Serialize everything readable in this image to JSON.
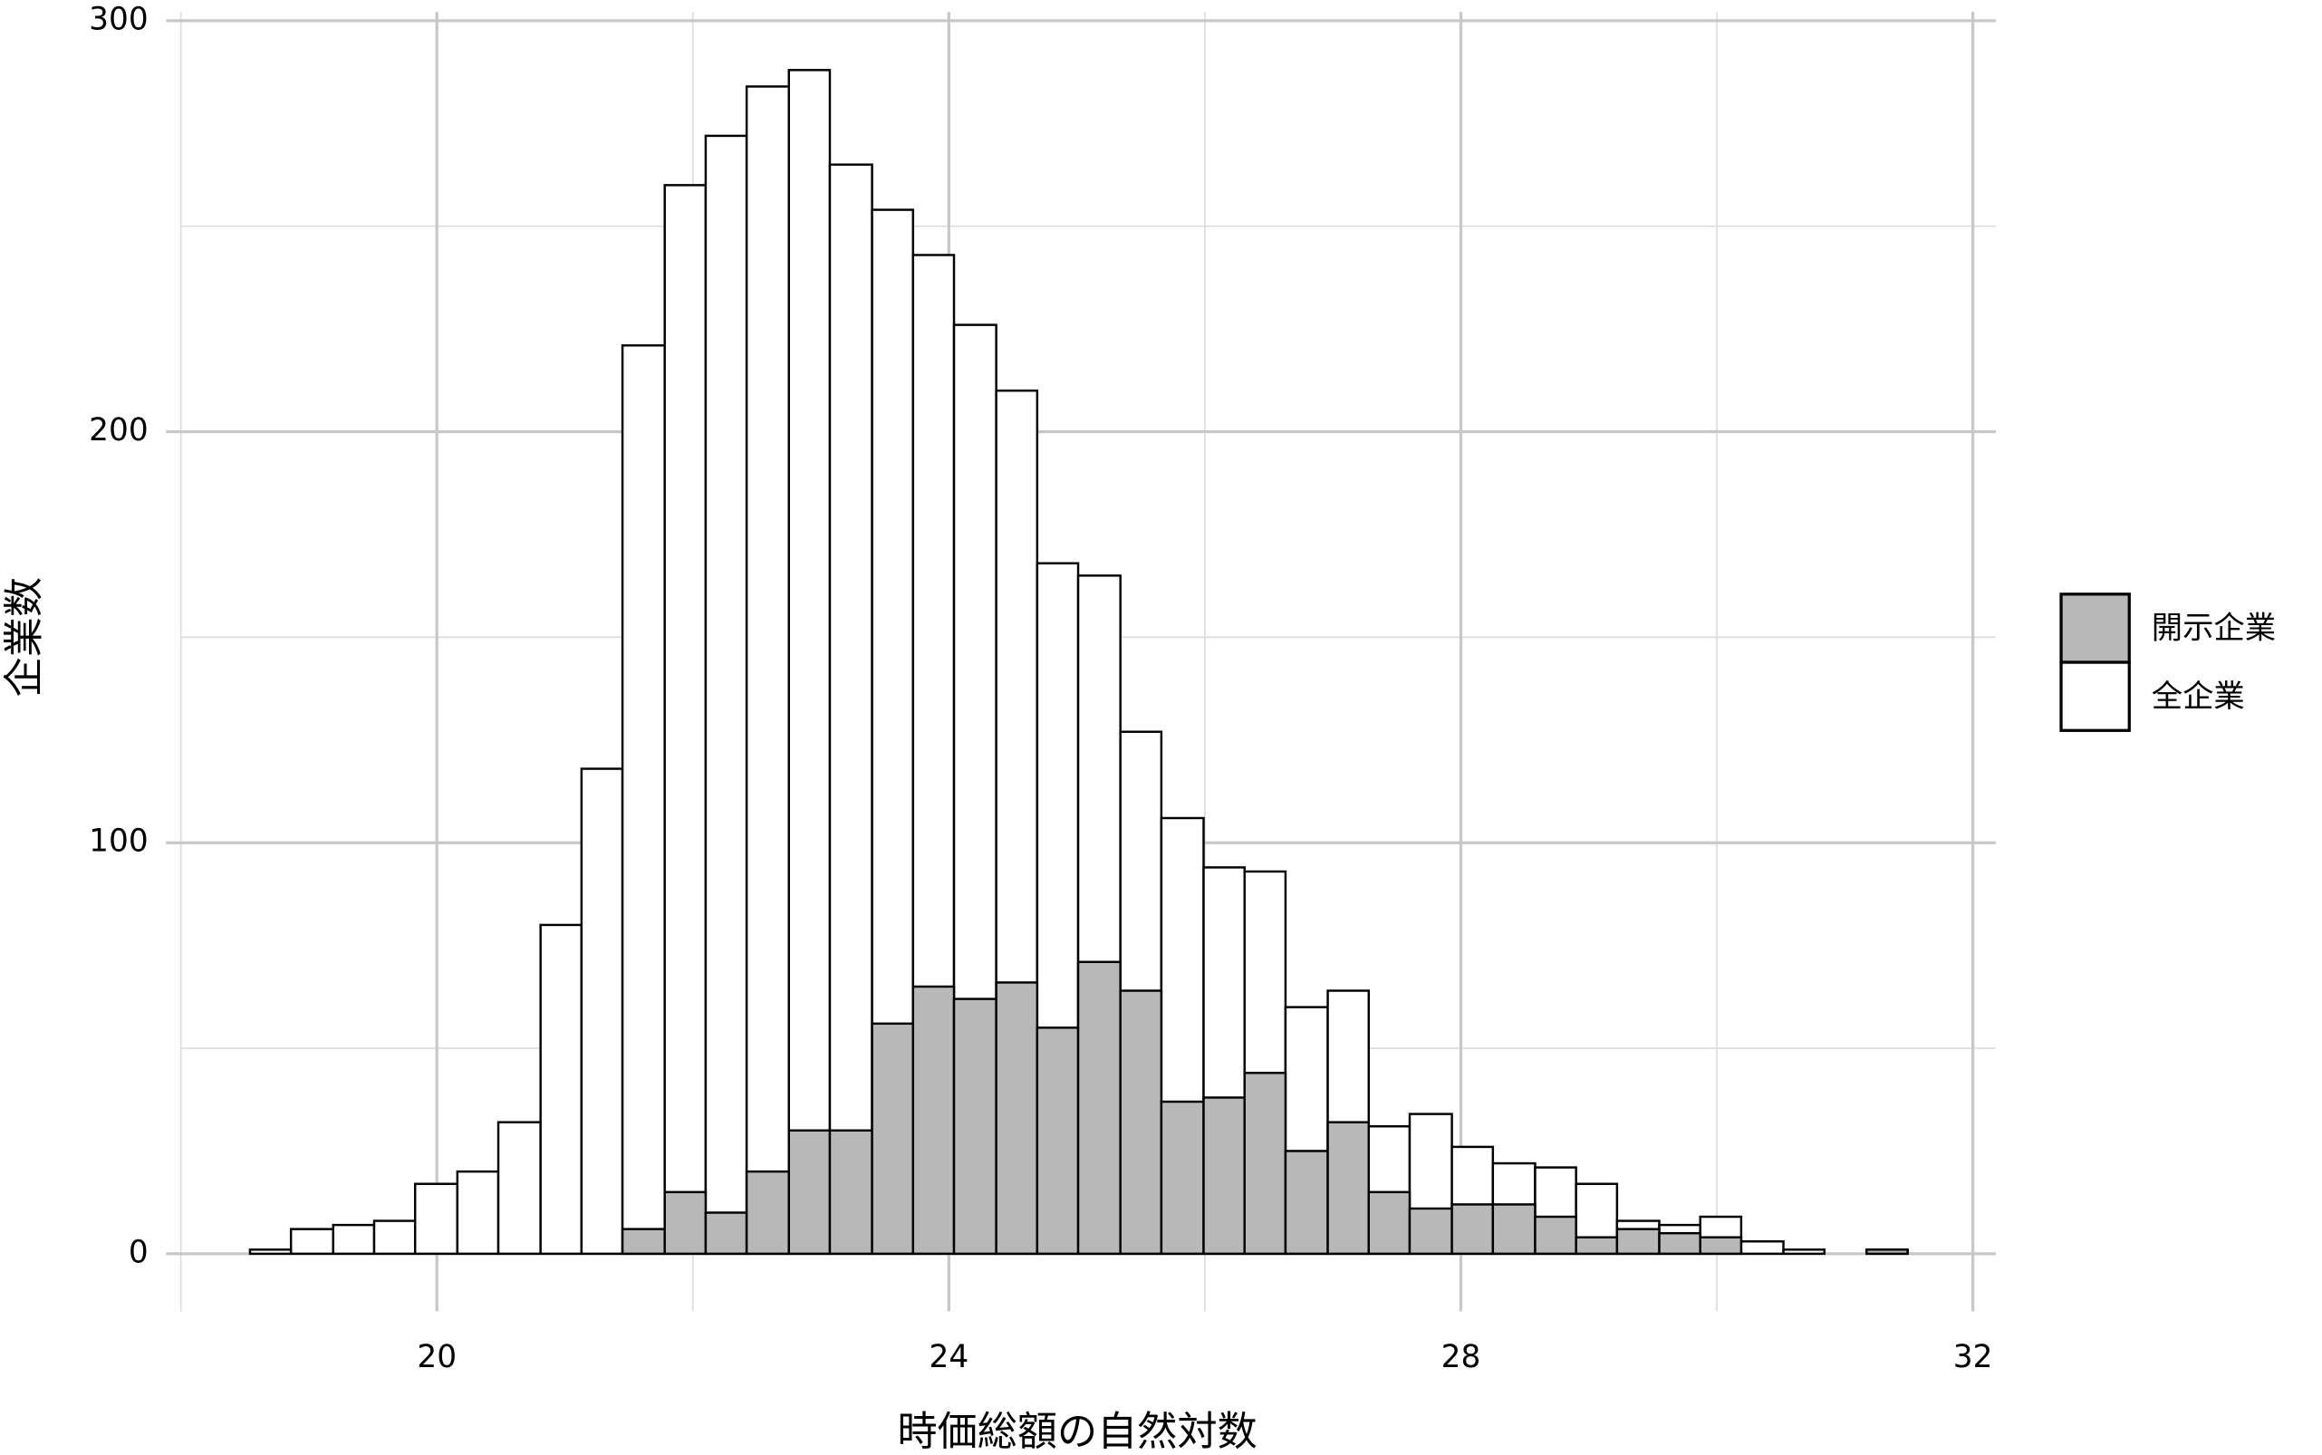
{
  "chart_data": {
    "type": "histogram",
    "x_label": "時価総額の自然対数",
    "y_label": "企業数",
    "bins": [
      18.54,
      18.86,
      19.19,
      19.51,
      19.83,
      20.16,
      20.48,
      20.81,
      21.13,
      21.45,
      21.78,
      22.1,
      22.42,
      22.75,
      23.07,
      23.4,
      23.72,
      24.04,
      24.37,
      24.69,
      25.01,
      25.34,
      25.66,
      25.99,
      26.31,
      26.63,
      26.96,
      27.28,
      27.6,
      27.93,
      28.25,
      28.58,
      28.9,
      29.22,
      29.55,
      29.87,
      30.19,
      30.52,
      30.84,
      31.17,
      31.49
    ],
    "series": [
      {
        "name": "開示企業",
        "color": "#b8b8b8",
        "values": [
          0,
          0,
          0,
          0,
          0,
          0,
          0,
          0,
          0,
          6,
          15,
          10,
          20,
          30,
          30,
          56,
          65,
          62,
          66,
          55,
          71,
          64,
          37,
          38,
          44,
          25,
          32,
          15,
          11,
          12,
          12,
          9,
          4,
          6,
          5,
          4,
          0,
          0,
          0,
          1
        ]
      },
      {
        "name": "全企業",
        "color": "#ffffff",
        "values": [
          1,
          6,
          7,
          8,
          17,
          20,
          32,
          80,
          118,
          221,
          260,
          272,
          284,
          288,
          265,
          254,
          243,
          226,
          210,
          168,
          165,
          127,
          106,
          94,
          93,
          60,
          64,
          31,
          34,
          26,
          22,
          21,
          17,
          8,
          7,
          9,
          3,
          1,
          0,
          1
        ]
      }
    ],
    "xlim": [
      18,
      32.18
    ],
    "xticks": [
      20,
      24,
      28,
      32
    ],
    "ylim": [
      -14,
      300
    ],
    "yticks": [
      0,
      100,
      200,
      300
    ],
    "grid": true,
    "legend": "right"
  }
}
